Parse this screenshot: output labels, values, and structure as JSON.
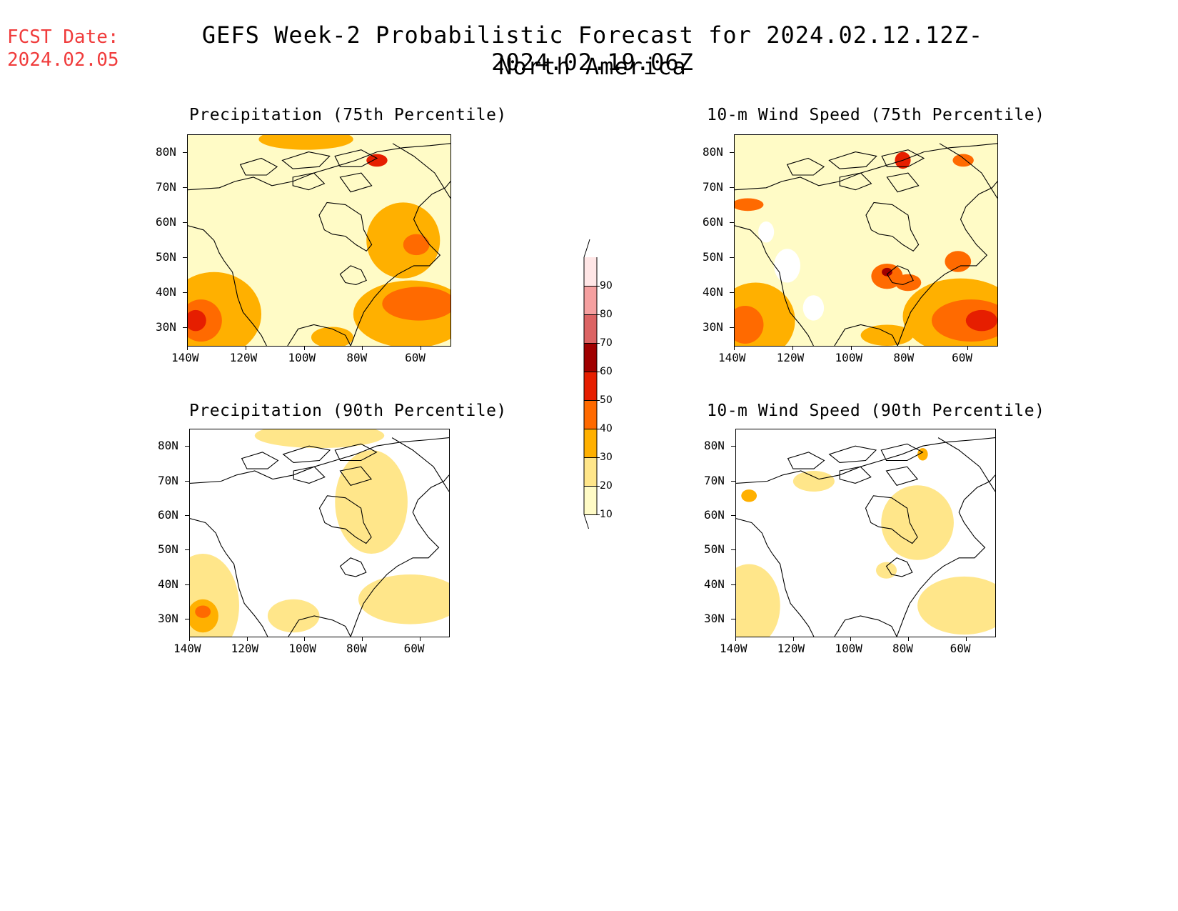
{
  "header": {
    "fcst_label": "FCST Date:",
    "fcst_date": "2024.02.05",
    "title_line1": "GEFS Week-2 Probabilistic Forecast for 2024.02.12.12Z-2024.02.19.06Z",
    "title_line2": "North America"
  },
  "panels": [
    {
      "id": "precip75",
      "title": "Precipitation (75th Percentile)",
      "field": "precipitation",
      "percentile": "75th"
    },
    {
      "id": "wind75",
      "title": "10-m Wind Speed (75th Percentile)",
      "field": "10-m wind speed",
      "percentile": "75th"
    },
    {
      "id": "precip90",
      "title": "Precipitation (90th Percentile)",
      "field": "precipitation",
      "percentile": "90th"
    },
    {
      "id": "wind90",
      "title": "10-m Wind Speed (90th Percentile)",
      "field": "10-m wind speed",
      "percentile": "90th"
    }
  ],
  "axes": {
    "lat_labels": [
      "80N",
      "70N",
      "60N",
      "50N",
      "40N",
      "30N"
    ],
    "lon_labels": [
      "140W",
      "120W",
      "100W",
      "80W",
      "60W"
    ],
    "lat_range": [
      25,
      85
    ],
    "lon_range": [
      -140,
      -50
    ]
  },
  "colorbar": {
    "levels": [
      "10",
      "20",
      "30",
      "40",
      "50",
      "60",
      "70",
      "80",
      "90"
    ],
    "colors": [
      "#fffbc6",
      "#ffe68a",
      "#ffb000",
      "#ff6a00",
      "#e61e00",
      "#a00000",
      "#dc6464",
      "#f5a0a0",
      "#ffe6e6"
    ]
  }
}
